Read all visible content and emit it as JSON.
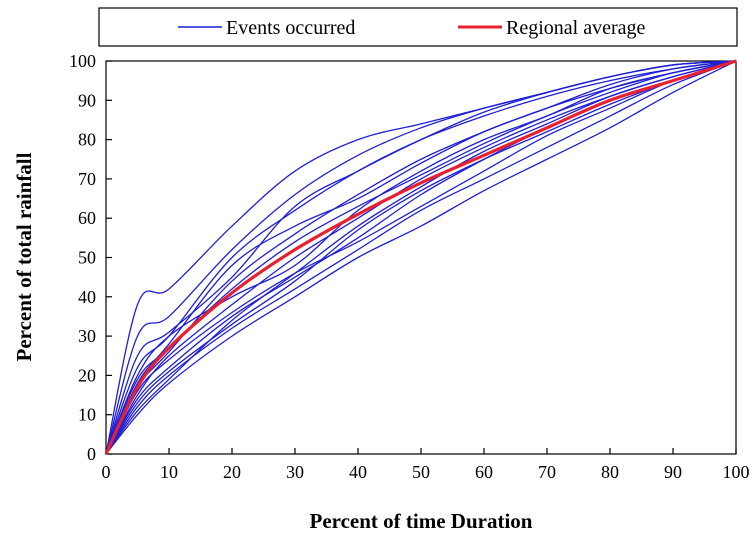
{
  "chart_data": {
    "type": "line",
    "xlabel": "Percent of time Duration",
    "ylabel": "Percent of total rainfall",
    "xlim": [
      0,
      100
    ],
    "ylim": [
      0,
      100
    ],
    "x_ticks": [
      0,
      10,
      20,
      30,
      40,
      50,
      60,
      70,
      80,
      90,
      100
    ],
    "y_ticks": [
      0,
      10,
      20,
      30,
      40,
      50,
      60,
      70,
      80,
      90,
      100
    ],
    "grid": false,
    "legend_position": "top",
    "x": [
      0,
      5,
      10,
      20,
      30,
      40,
      50,
      60,
      70,
      80,
      90,
      100
    ],
    "legend": {
      "events_label": "Events occurred",
      "average_label": "Regional average"
    },
    "colors": {
      "events": "#1f1fd6",
      "average": "#e8202f"
    },
    "series": [
      {
        "name": "Regional average",
        "values": [
          0,
          17,
          27,
          41,
          52,
          61,
          69,
          76,
          83,
          90,
          95,
          100
        ]
      }
    ],
    "event_series": [
      {
        "values": [
          0,
          38,
          42,
          58,
          72,
          80,
          84,
          88,
          92,
          96,
          99,
          100
        ]
      },
      {
        "values": [
          0,
          30,
          35,
          52,
          66,
          76,
          83,
          88,
          92,
          96,
          99,
          100
        ]
      },
      {
        "values": [
          0,
          25,
          31,
          45,
          63,
          72,
          80,
          87,
          92,
          96,
          99,
          100
        ]
      },
      {
        "values": [
          0,
          22,
          30,
          50,
          62,
          72,
          80,
          86,
          91,
          95,
          98,
          100
        ]
      },
      {
        "values": [
          0,
          18,
          28,
          48,
          58,
          65,
          74,
          82,
          88,
          94,
          98,
          100
        ]
      },
      {
        "values": [
          0,
          20,
          30,
          40,
          48,
          62,
          72,
          80,
          86,
          93,
          97,
          100
        ]
      },
      {
        "values": [
          0,
          15,
          25,
          38,
          50,
          60,
          70,
          78,
          85,
          91,
          96,
          100
        ]
      },
      {
        "values": [
          0,
          14,
          22,
          35,
          45,
          55,
          66,
          75,
          83,
          90,
          95,
          100
        ]
      },
      {
        "values": [
          0,
          16,
          24,
          36,
          46,
          54,
          63,
          72,
          81,
          88,
          95,
          100
        ]
      },
      {
        "values": [
          0,
          12,
          20,
          32,
          42,
          52,
          62,
          70,
          78,
          86,
          94,
          100
        ]
      },
      {
        "values": [
          0,
          10,
          18,
          30,
          40,
          50,
          58,
          67,
          75,
          83,
          92,
          100
        ]
      },
      {
        "values": [
          0,
          13,
          21,
          33,
          44,
          57,
          67,
          75,
          82,
          89,
          95,
          100
        ]
      },
      {
        "values": [
          0,
          19,
          27,
          42,
          54,
          63,
          71,
          79,
          86,
          92,
          97,
          100
        ]
      },
      {
        "values": [
          0,
          11,
          19,
          34,
          46,
          58,
          68,
          77,
          84,
          91,
          96,
          100
        ]
      },
      {
        "values": [
          0,
          17,
          26,
          44,
          56,
          66,
          75,
          82,
          88,
          93,
          97,
          100
        ]
      }
    ]
  }
}
